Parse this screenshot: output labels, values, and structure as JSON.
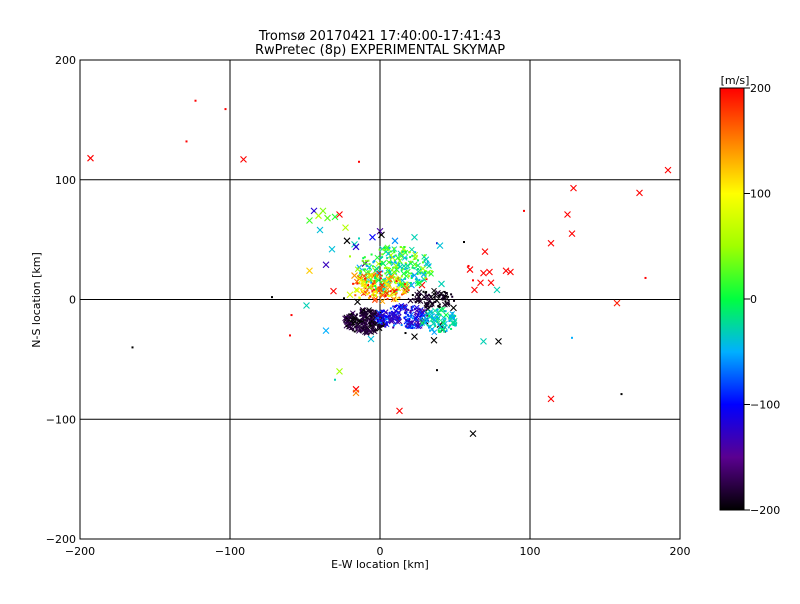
{
  "chart_data": {
    "type": "scatter",
    "title": "Tromsø 20170421 17:40:00-17:41:43",
    "subtitle": "RwPretec (8p) EXPERIMENTAL SKYMAP",
    "xlabel": "E-W location [km]",
    "ylabel": "N-S location [km]",
    "xlim": [
      -200,
      200
    ],
    "ylim": [
      -200,
      200
    ],
    "xticks": [
      "−200",
      "−100",
      "0",
      "100",
      "200"
    ],
    "yticks": [
      "−200",
      "−100",
      "0",
      "100",
      "200"
    ],
    "grid": true,
    "colorbar": {
      "label": "[m/s]",
      "min": -200,
      "max": 200,
      "ticks": [
        "200",
        "100",
        "0",
        "−100",
        "−200"
      ]
    },
    "marker_types": [
      "x",
      "dot"
    ],
    "points": [
      {
        "x": -193,
        "y": 118,
        "v": 200,
        "m": "x"
      },
      {
        "x": -129,
        "y": 132,
        "v": 200,
        "m": "d"
      },
      {
        "x": -123,
        "y": 166,
        "v": 200,
        "m": "d"
      },
      {
        "x": -103,
        "y": 159,
        "v": 200,
        "m": "d"
      },
      {
        "x": -91,
        "y": 117,
        "v": 200,
        "m": "x"
      },
      {
        "x": -14,
        "y": 115,
        "v": 200,
        "m": "d"
      },
      {
        "x": 192,
        "y": 108,
        "v": 200,
        "m": "x"
      },
      {
        "x": 173,
        "y": 89,
        "v": 200,
        "m": "x"
      },
      {
        "x": 129,
        "y": 93,
        "v": 200,
        "m": "x"
      },
      {
        "x": 125,
        "y": 71,
        "v": 200,
        "m": "x"
      },
      {
        "x": 128,
        "y": 55,
        "v": 200,
        "m": "x"
      },
      {
        "x": 114,
        "y": 47,
        "v": 200,
        "m": "x"
      },
      {
        "x": 96,
        "y": 74,
        "v": 200,
        "m": "d"
      },
      {
        "x": 177,
        "y": 18,
        "v": 200,
        "m": "d"
      },
      {
        "x": 158,
        "y": -3,
        "v": 190,
        "m": "x"
      },
      {
        "x": 114,
        "y": -83,
        "v": 200,
        "m": "x"
      },
      {
        "x": 161,
        "y": -79,
        "v": -200,
        "m": "d"
      },
      {
        "x": 128,
        "y": -32,
        "v": -50,
        "m": "d"
      },
      {
        "x": 70,
        "y": 40,
        "v": 200,
        "m": "x"
      },
      {
        "x": 59,
        "y": 28,
        "v": 200,
        "m": "d"
      },
      {
        "x": 60,
        "y": 25,
        "v": 200,
        "m": "x"
      },
      {
        "x": 69,
        "y": 22,
        "v": 200,
        "m": "x"
      },
      {
        "x": 73,
        "y": 23,
        "v": 200,
        "m": "x"
      },
      {
        "x": 84,
        "y": 24,
        "v": 200,
        "m": "x"
      },
      {
        "x": 87,
        "y": 23,
        "v": 200,
        "m": "x"
      },
      {
        "x": 62,
        "y": 16,
        "v": 200,
        "m": "d"
      },
      {
        "x": 67,
        "y": 14,
        "v": 200,
        "m": "x"
      },
      {
        "x": 74,
        "y": 14,
        "v": 200,
        "m": "x"
      },
      {
        "x": 63,
        "y": 8,
        "v": 200,
        "m": "x"
      },
      {
        "x": 78,
        "y": 8,
        "v": -30,
        "m": "x"
      },
      {
        "x": 56,
        "y": 48,
        "v": -200,
        "m": "d"
      },
      {
        "x": 38,
        "y": 47,
        "v": -120,
        "m": "d"
      },
      {
        "x": 69,
        "y": -35,
        "v": -30,
        "m": "x"
      },
      {
        "x": 79,
        "y": -35,
        "v": -200,
        "m": "x"
      },
      {
        "x": 38,
        "y": -59,
        "v": -200,
        "m": "d"
      },
      {
        "x": 62,
        "y": -112,
        "v": -200,
        "m": "x"
      },
      {
        "x": 13,
        "y": -93,
        "v": 200,
        "m": "x"
      },
      {
        "x": -16,
        "y": -75,
        "v": 200,
        "m": "x"
      },
      {
        "x": -16,
        "y": -78,
        "v": 150,
        "m": "x"
      },
      {
        "x": -27,
        "y": -60,
        "v": 50,
        "m": "x"
      },
      {
        "x": -30,
        "y": -67,
        "v": -30,
        "m": "d"
      },
      {
        "x": -165,
        "y": -40,
        "v": -200,
        "m": "d"
      },
      {
        "x": -60,
        "y": -30,
        "v": 200,
        "m": "d"
      },
      {
        "x": -59,
        "y": -13,
        "v": 200,
        "m": "d"
      },
      {
        "x": -49,
        "y": -5,
        "v": -30,
        "m": "x"
      },
      {
        "x": -72,
        "y": 2,
        "v": -200,
        "m": "d"
      },
      {
        "x": -31,
        "y": 7,
        "v": 200,
        "m": "x"
      },
      {
        "x": -47,
        "y": 24,
        "v": 120,
        "m": "x"
      },
      {
        "x": -36,
        "y": 29,
        "v": -130,
        "m": "x"
      },
      {
        "x": -44,
        "y": 74,
        "v": -120,
        "m": "x"
      },
      {
        "x": -47,
        "y": 66,
        "v": 20,
        "m": "x"
      },
      {
        "x": -41,
        "y": 70,
        "v": 60,
        "m": "x"
      },
      {
        "x": -38,
        "y": 74,
        "v": 40,
        "m": "x"
      },
      {
        "x": -35,
        "y": 68,
        "v": 30,
        "m": "x"
      },
      {
        "x": -30,
        "y": 69,
        "v": 10,
        "m": "x"
      },
      {
        "x": -27,
        "y": 71,
        "v": 200,
        "m": "x"
      },
      {
        "x": -23,
        "y": 60,
        "v": 60,
        "m": "x"
      },
      {
        "x": -40,
        "y": 58,
        "v": -40,
        "m": "x"
      },
      {
        "x": -32,
        "y": 42,
        "v": -40,
        "m": "x"
      },
      {
        "x": -22,
        "y": 49,
        "v": -200,
        "m": "x"
      },
      {
        "x": -17,
        "y": 46,
        "v": -30,
        "m": "x"
      },
      {
        "x": -16,
        "y": 44,
        "v": -120,
        "m": "x"
      },
      {
        "x": -14,
        "y": 51,
        "v": -30,
        "m": "d"
      },
      {
        "x": 0,
        "y": 57,
        "v": -140,
        "m": "x"
      },
      {
        "x": 1,
        "y": 54,
        "v": -200,
        "m": "x"
      },
      {
        "x": -5,
        "y": 52,
        "v": -100,
        "m": "x"
      },
      {
        "x": 10,
        "y": 49,
        "v": -60,
        "m": "x"
      },
      {
        "x": 23,
        "y": 52,
        "v": -30,
        "m": "x"
      },
      {
        "x": -20,
        "y": 36,
        "v": 50,
        "m": "d"
      },
      {
        "x": -10,
        "y": 30,
        "v": -160,
        "m": "x"
      },
      {
        "x": -17,
        "y": 20,
        "v": 140,
        "m": "x"
      },
      {
        "x": -11,
        "y": 15,
        "v": 120,
        "m": "x"
      },
      {
        "x": -7,
        "y": 10,
        "v": 200,
        "m": "x"
      },
      {
        "x": -4,
        "y": 13,
        "v": 100,
        "m": "x"
      },
      {
        "x": -24,
        "y": 1,
        "v": -200,
        "m": "d"
      },
      {
        "x": -20,
        "y": 4,
        "v": 80,
        "m": "x"
      },
      {
        "x": -15,
        "y": -2,
        "v": -200,
        "m": "x"
      },
      {
        "x": -17,
        "y": -15,
        "v": -200,
        "m": "x"
      },
      {
        "x": -14,
        "y": -18,
        "v": -200,
        "m": "x"
      },
      {
        "x": -10,
        "y": -14,
        "v": -200,
        "m": "x"
      },
      {
        "x": -19,
        "y": -19,
        "v": -200,
        "m": "x"
      },
      {
        "x": -6,
        "y": -22,
        "v": -200,
        "m": "x"
      },
      {
        "x": -13,
        "y": -26,
        "v": -200,
        "m": "d"
      },
      {
        "x": 8,
        "y": -17,
        "v": -120,
        "m": "x"
      },
      {
        "x": 12,
        "y": -15,
        "v": -150,
        "m": "x"
      },
      {
        "x": 18,
        "y": -18,
        "v": -100,
        "m": "x"
      },
      {
        "x": 24,
        "y": -16,
        "v": -110,
        "m": "x"
      },
      {
        "x": 17,
        "y": -28,
        "v": -200,
        "m": "d"
      },
      {
        "x": 23,
        "y": -31,
        "v": -200,
        "m": "x"
      },
      {
        "x": 30,
        "y": -18,
        "v": -200,
        "m": "x"
      },
      {
        "x": 31,
        "y": -16,
        "v": -30,
        "m": "x"
      },
      {
        "x": 32,
        "y": -8,
        "v": -200,
        "m": "x"
      },
      {
        "x": 36,
        "y": -34,
        "v": -200,
        "m": "x"
      },
      {
        "x": 40,
        "y": -21,
        "v": -200,
        "m": "x"
      },
      {
        "x": 42,
        "y": -25,
        "v": -200,
        "m": "x"
      },
      {
        "x": 49,
        "y": -7,
        "v": -200,
        "m": "x"
      },
      {
        "x": 44,
        "y": 3,
        "v": -200,
        "m": "d"
      },
      {
        "x": 34,
        "y": 2,
        "v": -200,
        "m": "x"
      },
      {
        "x": 28,
        "y": 12,
        "v": 200,
        "m": "x"
      },
      {
        "x": 31,
        "y": 17,
        "v": 200,
        "m": "d"
      },
      {
        "x": 41,
        "y": 13,
        "v": -30,
        "m": "x"
      },
      {
        "x": 40,
        "y": 45,
        "v": -40,
        "m": "x"
      },
      {
        "x": 4,
        "y": 40,
        "v": 0,
        "m": "x"
      },
      {
        "x": 2,
        "y": 30,
        "v": 20,
        "m": "x"
      },
      {
        "x": 6,
        "y": 22,
        "v": -30,
        "m": "x"
      },
      {
        "x": 11,
        "y": 25,
        "v": 10,
        "m": "x"
      },
      {
        "x": 16,
        "y": 28,
        "v": -20,
        "m": "x"
      },
      {
        "x": 5,
        "y": 14,
        "v": -50,
        "m": "x"
      },
      {
        "x": 15,
        "y": 16,
        "v": -40,
        "m": "x"
      },
      {
        "x": 21,
        "y": 12,
        "v": -60,
        "m": "x"
      },
      {
        "x": -3,
        "y": 24,
        "v": 40,
        "m": "x"
      },
      {
        "x": -9,
        "y": 22,
        "v": 30,
        "m": "x"
      },
      {
        "x": -6,
        "y": -33,
        "v": -40,
        "m": "x"
      },
      {
        "x": -36,
        "y": -26,
        "v": -50,
        "m": "x"
      }
    ]
  }
}
